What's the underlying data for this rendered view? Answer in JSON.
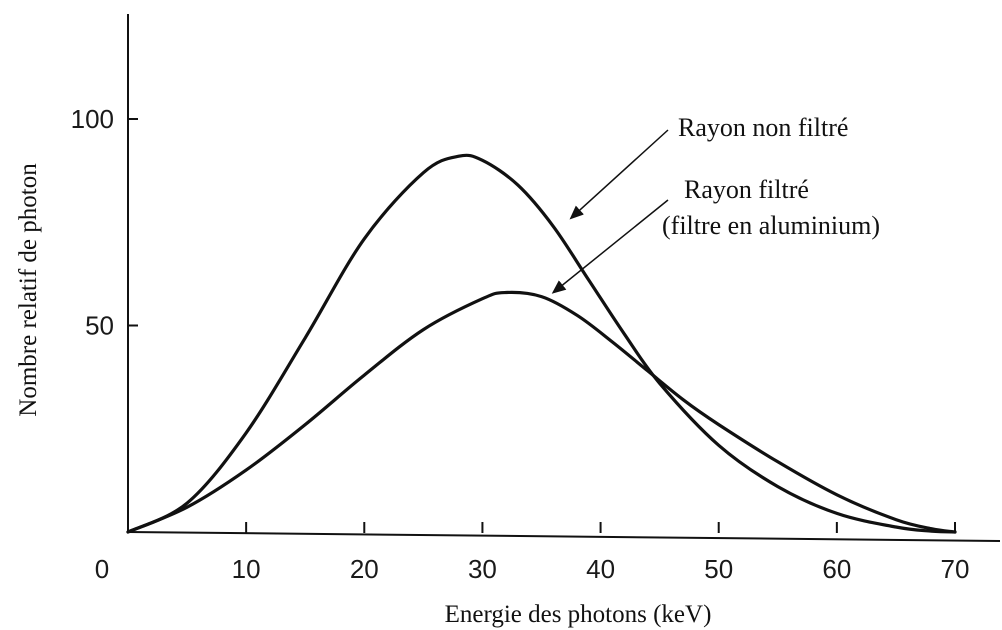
{
  "chart_data": {
    "type": "line",
    "title": "",
    "xlabel": "Energie des photons (keV)",
    "ylabel": "Nombre relatif de photon",
    "xlim": [
      0,
      73
    ],
    "ylim": [
      0,
      125
    ],
    "xticks": [
      0,
      10,
      20,
      30,
      40,
      50,
      60,
      70
    ],
    "yticks": [
      50,
      100
    ],
    "grid": false,
    "legend": "none",
    "series": [
      {
        "name": "Rayon non filtré",
        "color": "#111111",
        "x": [
          0,
          5,
          10,
          15,
          20,
          25,
          28,
          30,
          33,
          36,
          39,
          42,
          45,
          50,
          55,
          60,
          65,
          68,
          70
        ],
        "y": [
          0,
          7,
          24,
          47,
          71,
          87,
          91,
          90,
          84,
          74,
          61,
          48,
          36,
          21,
          11,
          4.5,
          1.2,
          0.2,
          0
        ]
      },
      {
        "name": "Rayon filtré",
        "color": "#111111",
        "x": [
          0,
          5,
          10,
          15,
          20,
          25,
          30,
          32,
          35,
          38,
          41,
          44,
          47,
          50,
          55,
          60,
          65,
          68,
          70
        ],
        "y": [
          0,
          6,
          15,
          26,
          38,
          49,
          56.5,
          58,
          57,
          52.5,
          46,
          39,
          32,
          26,
          17,
          9,
          3,
          0.8,
          0
        ]
      }
    ],
    "annotations": [
      {
        "line1": "Rayon non filtré",
        "target": [
          37.5,
          76
        ]
      },
      {
        "line1": "Rayon filtré",
        "line2": "(filtre en aluminium)",
        "target": [
          36,
          58
        ]
      }
    ]
  }
}
